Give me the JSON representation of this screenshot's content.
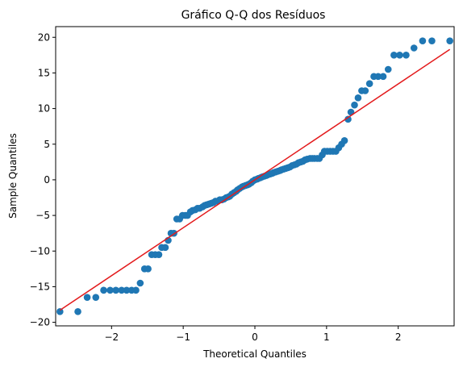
{
  "chart_data": {
    "type": "scatter",
    "title": "Gráfico Q-Q dos Resíduos",
    "xlabel": "Theoretical Quantiles",
    "ylabel": "Sample Quantiles",
    "xlim": [
      -2.78,
      2.78
    ],
    "ylim": [
      -20.5,
      21.5
    ],
    "xticks": [
      -2,
      -1,
      0,
      1,
      2
    ],
    "xtick_labels": [
      "−2",
      "−1",
      "0",
      "1",
      "2"
    ],
    "yticks": [
      -20,
      -15,
      -10,
      -5,
      0,
      5,
      10,
      15,
      20
    ],
    "ytick_labels": [
      "−20",
      "−15",
      "−10",
      "−5",
      "0",
      "5",
      "10",
      "15",
      "20"
    ],
    "grid": false,
    "colors": {
      "points": "#1f77b4",
      "reference_line": "#e31a1c"
    },
    "reference_line": {
      "x": [
        -2.72,
        2.72
      ],
      "y": [
        -18.3,
        18.3
      ]
    },
    "points": [
      [
        -2.72,
        -18.5
      ],
      [
        -2.47,
        -18.5
      ],
      [
        -2.34,
        -16.5
      ],
      [
        -2.22,
        -16.5
      ],
      [
        -2.11,
        -15.5
      ],
      [
        -2.02,
        -15.5
      ],
      [
        -1.94,
        -15.5
      ],
      [
        -1.86,
        -15.5
      ],
      [
        -1.79,
        -15.5
      ],
      [
        -1.72,
        -15.5
      ],
      [
        -1.66,
        -15.5
      ],
      [
        -1.6,
        -14.5
      ],
      [
        -1.54,
        -12.5
      ],
      [
        -1.49,
        -12.5
      ],
      [
        -1.44,
        -10.5
      ],
      [
        -1.39,
        -10.5
      ],
      [
        -1.34,
        -10.5
      ],
      [
        -1.3,
        -9.5
      ],
      [
        -1.25,
        -9.5
      ],
      [
        -1.21,
        -8.5
      ],
      [
        -1.17,
        -7.5
      ],
      [
        -1.13,
        -7.5
      ],
      [
        -1.09,
        -5.5
      ],
      [
        -1.05,
        -5.5
      ],
      [
        -1.01,
        -5.0
      ],
      [
        -0.97,
        -5.0
      ],
      [
        -0.94,
        -5.0
      ],
      [
        -0.9,
        -4.5
      ],
      [
        -0.87,
        -4.3
      ],
      [
        -0.83,
        -4.2
      ],
      [
        -0.8,
        -4.0
      ],
      [
        -0.77,
        -4.0
      ],
      [
        -0.73,
        -3.8
      ],
      [
        -0.7,
        -3.6
      ],
      [
        -0.67,
        -3.5
      ],
      [
        -0.64,
        -3.4
      ],
      [
        -0.61,
        -3.3
      ],
      [
        -0.58,
        -3.2
      ],
      [
        -0.55,
        -3.0
      ],
      [
        -0.52,
        -3.0
      ],
      [
        -0.49,
        -2.8
      ],
      [
        -0.46,
        -2.8
      ],
      [
        -0.43,
        -2.7
      ],
      [
        -0.4,
        -2.5
      ],
      [
        -0.37,
        -2.4
      ],
      [
        -0.35,
        -2.3
      ],
      [
        -0.32,
        -2.0
      ],
      [
        -0.29,
        -1.8
      ],
      [
        -0.26,
        -1.6
      ],
      [
        -0.24,
        -1.4
      ],
      [
        -0.21,
        -1.2
      ],
      [
        -0.18,
        -1.0
      ],
      [
        -0.16,
        -0.9
      ],
      [
        -0.13,
        -0.8
      ],
      [
        -0.1,
        -0.7
      ],
      [
        -0.08,
        -0.6
      ],
      [
        -0.05,
        -0.4
      ],
      [
        -0.03,
        -0.2
      ],
      [
        0.0,
        0.0
      ],
      [
        0.03,
        0.1
      ],
      [
        0.05,
        0.2
      ],
      [
        0.08,
        0.3
      ],
      [
        0.1,
        0.4
      ],
      [
        0.13,
        0.5
      ],
      [
        0.16,
        0.6
      ],
      [
        0.18,
        0.7
      ],
      [
        0.21,
        0.8
      ],
      [
        0.24,
        0.9
      ],
      [
        0.26,
        1.0
      ],
      [
        0.29,
        1.1
      ],
      [
        0.32,
        1.2
      ],
      [
        0.35,
        1.3
      ],
      [
        0.37,
        1.4
      ],
      [
        0.4,
        1.5
      ],
      [
        0.43,
        1.6
      ],
      [
        0.46,
        1.7
      ],
      [
        0.49,
        1.8
      ],
      [
        0.52,
        2.0
      ],
      [
        0.55,
        2.1
      ],
      [
        0.58,
        2.2
      ],
      [
        0.61,
        2.4
      ],
      [
        0.64,
        2.5
      ],
      [
        0.67,
        2.6
      ],
      [
        0.7,
        2.8
      ],
      [
        0.73,
        2.9
      ],
      [
        0.77,
        3.0
      ],
      [
        0.8,
        3.0
      ],
      [
        0.83,
        3.0
      ],
      [
        0.87,
        3.0
      ],
      [
        0.9,
        3.0
      ],
      [
        0.94,
        3.5
      ],
      [
        0.97,
        4.0
      ],
      [
        1.01,
        4.0
      ],
      [
        1.05,
        4.0
      ],
      [
        1.09,
        4.0
      ],
      [
        1.13,
        4.0
      ],
      [
        1.17,
        4.5
      ],
      [
        1.21,
        5.0
      ],
      [
        1.25,
        5.5
      ],
      [
        1.3,
        8.5
      ],
      [
        1.34,
        9.5
      ],
      [
        1.39,
        10.5
      ],
      [
        1.44,
        11.5
      ],
      [
        1.49,
        12.5
      ],
      [
        1.54,
        12.5
      ],
      [
        1.6,
        13.5
      ],
      [
        1.66,
        14.5
      ],
      [
        1.72,
        14.5
      ],
      [
        1.79,
        14.5
      ],
      [
        1.86,
        15.5
      ],
      [
        1.94,
        17.5
      ],
      [
        2.02,
        17.5
      ],
      [
        2.11,
        17.5
      ],
      [
        2.22,
        18.5
      ],
      [
        2.34,
        19.5
      ],
      [
        2.47,
        19.5
      ],
      [
        2.72,
        19.5
      ]
    ]
  }
}
